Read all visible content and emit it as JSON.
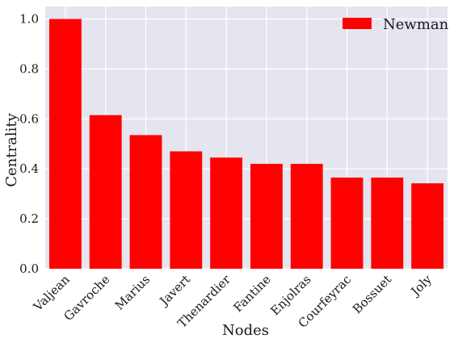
{
  "chart_data": {
    "type": "bar",
    "title": "",
    "xlabel": "Nodes",
    "ylabel": "Centrality",
    "categories": [
      "Valjean",
      "Gavroche",
      "Marius",
      "Javert",
      "Thenardier",
      "Fantine",
      "Enjolras",
      "Courfeyrac",
      "Bossuet",
      "Joly"
    ],
    "series": [
      {
        "name": "Newman",
        "values": [
          1.0,
          0.615,
          0.535,
          0.47,
          0.445,
          0.42,
          0.42,
          0.365,
          0.365,
          0.342
        ]
      }
    ],
    "ylim": [
      0,
      1.05
    ],
    "yticks": [
      "0.0",
      "0.2",
      "0.4",
      "0.6",
      "0.8",
      "1.0"
    ],
    "grid": true,
    "legend_position": "top-right",
    "colors": {
      "bar": "#ff0000",
      "plot_background": "#e5e5f0",
      "grid": "#ffffff"
    }
  }
}
